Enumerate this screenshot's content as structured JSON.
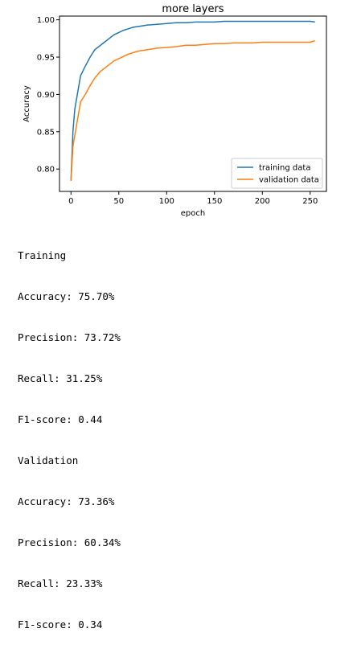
{
  "chart_data": {
    "type": "line",
    "title": "more layers",
    "xlabel": "epoch",
    "ylabel": "Accuracy",
    "xlim": [
      -12,
      267
    ],
    "ylim": [
      0.77,
      1.005
    ],
    "xticks": [
      0,
      50,
      100,
      150,
      200,
      250
    ],
    "xtick_labels": [
      "0",
      "50",
      "100",
      "150",
      "200",
      "250"
    ],
    "yticks": [
      0.8,
      0.85,
      0.9,
      0.95,
      1.0
    ],
    "ytick_labels": [
      "0.80",
      "0.85",
      "0.90",
      "0.95",
      "1.00"
    ],
    "grid": false,
    "legend_position": "lower-right",
    "series": [
      {
        "name": "training data",
        "color": "#1f77b4",
        "x": [
          0,
          2,
          4,
          6,
          8,
          10,
          15,
          20,
          25,
          30,
          35,
          40,
          45,
          50,
          55,
          60,
          65,
          70,
          80,
          90,
          100,
          110,
          120,
          130,
          140,
          150,
          160,
          170,
          180,
          190,
          200,
          210,
          220,
          230,
          240,
          250,
          255
        ],
        "y": [
          0.785,
          0.85,
          0.88,
          0.895,
          0.91,
          0.925,
          0.938,
          0.95,
          0.96,
          0.965,
          0.97,
          0.975,
          0.98,
          0.983,
          0.986,
          0.988,
          0.99,
          0.991,
          0.993,
          0.994,
          0.995,
          0.996,
          0.996,
          0.997,
          0.997,
          0.997,
          0.998,
          0.998,
          0.998,
          0.998,
          0.998,
          0.998,
          0.998,
          0.998,
          0.998,
          0.998,
          0.997
        ]
      },
      {
        "name": "validation data",
        "color": "#ff7f0e",
        "x": [
          0,
          2,
          4,
          6,
          8,
          10,
          15,
          20,
          25,
          30,
          35,
          40,
          45,
          50,
          55,
          60,
          65,
          70,
          80,
          90,
          100,
          110,
          120,
          130,
          140,
          150,
          160,
          170,
          180,
          190,
          200,
          210,
          220,
          230,
          240,
          250,
          255
        ],
        "y": [
          0.784,
          0.83,
          0.845,
          0.86,
          0.875,
          0.89,
          0.9,
          0.912,
          0.922,
          0.93,
          0.935,
          0.94,
          0.945,
          0.948,
          0.951,
          0.954,
          0.956,
          0.958,
          0.96,
          0.962,
          0.963,
          0.964,
          0.966,
          0.966,
          0.967,
          0.968,
          0.968,
          0.969,
          0.969,
          0.969,
          0.97,
          0.97,
          0.97,
          0.97,
          0.97,
          0.97,
          0.972
        ]
      }
    ]
  },
  "metrics": {
    "lines": [
      "Training",
      "Accuracy: 75.70%",
      "Precision: 73.72%",
      "Recall: 31.25%",
      "F1-score: 0.44",
      "Validation",
      "Accuracy: 73.36%",
      "Precision: 60.34%",
      "Recall: 23.33%",
      "F1-score: 0.34"
    ]
  }
}
